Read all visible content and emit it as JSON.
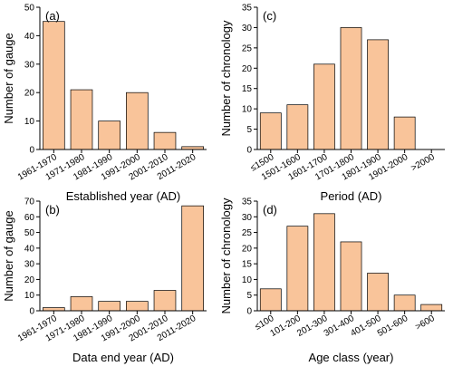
{
  "bar_color": "#F9C49A",
  "chart_data": [
    {
      "type": "bar",
      "panel": "(a)",
      "categories": [
        "1961-1970",
        "1971-1980",
        "1981-1990",
        "1991-2000",
        "2001-2010",
        "2011-2020"
      ],
      "values": [
        45,
        21,
        10,
        20,
        6,
        1
      ],
      "xlabel": "Established year (AD)",
      "ylabel": "Number of gauge",
      "ylim": [
        0,
        50
      ],
      "yticks": [
        0,
        10,
        20,
        30,
        40,
        50
      ]
    },
    {
      "type": "bar",
      "panel": "(c)",
      "categories": [
        "≤1500",
        "1501-1600",
        "1601-1700",
        "1701-1800",
        "1801-1900",
        "1901-2000",
        ">2000"
      ],
      "values": [
        9,
        11,
        21,
        30,
        27,
        8,
        0
      ],
      "xlabel": "Period (AD)",
      "ylabel": "Number of chronology",
      "ylim": [
        0,
        35
      ],
      "yticks": [
        0,
        5,
        10,
        15,
        20,
        25,
        30,
        35
      ]
    },
    {
      "type": "bar",
      "panel": "(b)",
      "categories": [
        "1961-1970",
        "1971-1980",
        "1981-1990",
        "1991-2000",
        "2001-2010",
        "2011-2020"
      ],
      "values": [
        2,
        9,
        6,
        6,
        13,
        67
      ],
      "xlabel": "Data end year (AD)",
      "ylabel": "Number of gauge",
      "ylim": [
        0,
        70
      ],
      "yticks": [
        0,
        10,
        20,
        30,
        40,
        50,
        60,
        70
      ]
    },
    {
      "type": "bar",
      "panel": "(d)",
      "categories": [
        "≤100",
        "101-200",
        "201-300",
        "301-400",
        "401-500",
        "501-600",
        ">600"
      ],
      "values": [
        7,
        27,
        31,
        22,
        12,
        5,
        2
      ],
      "xlabel": "Age class (year)",
      "ylabel": "Number of chronology",
      "ylim": [
        0,
        35
      ],
      "yticks": [
        0,
        5,
        10,
        15,
        20,
        25,
        30,
        35
      ]
    }
  ]
}
